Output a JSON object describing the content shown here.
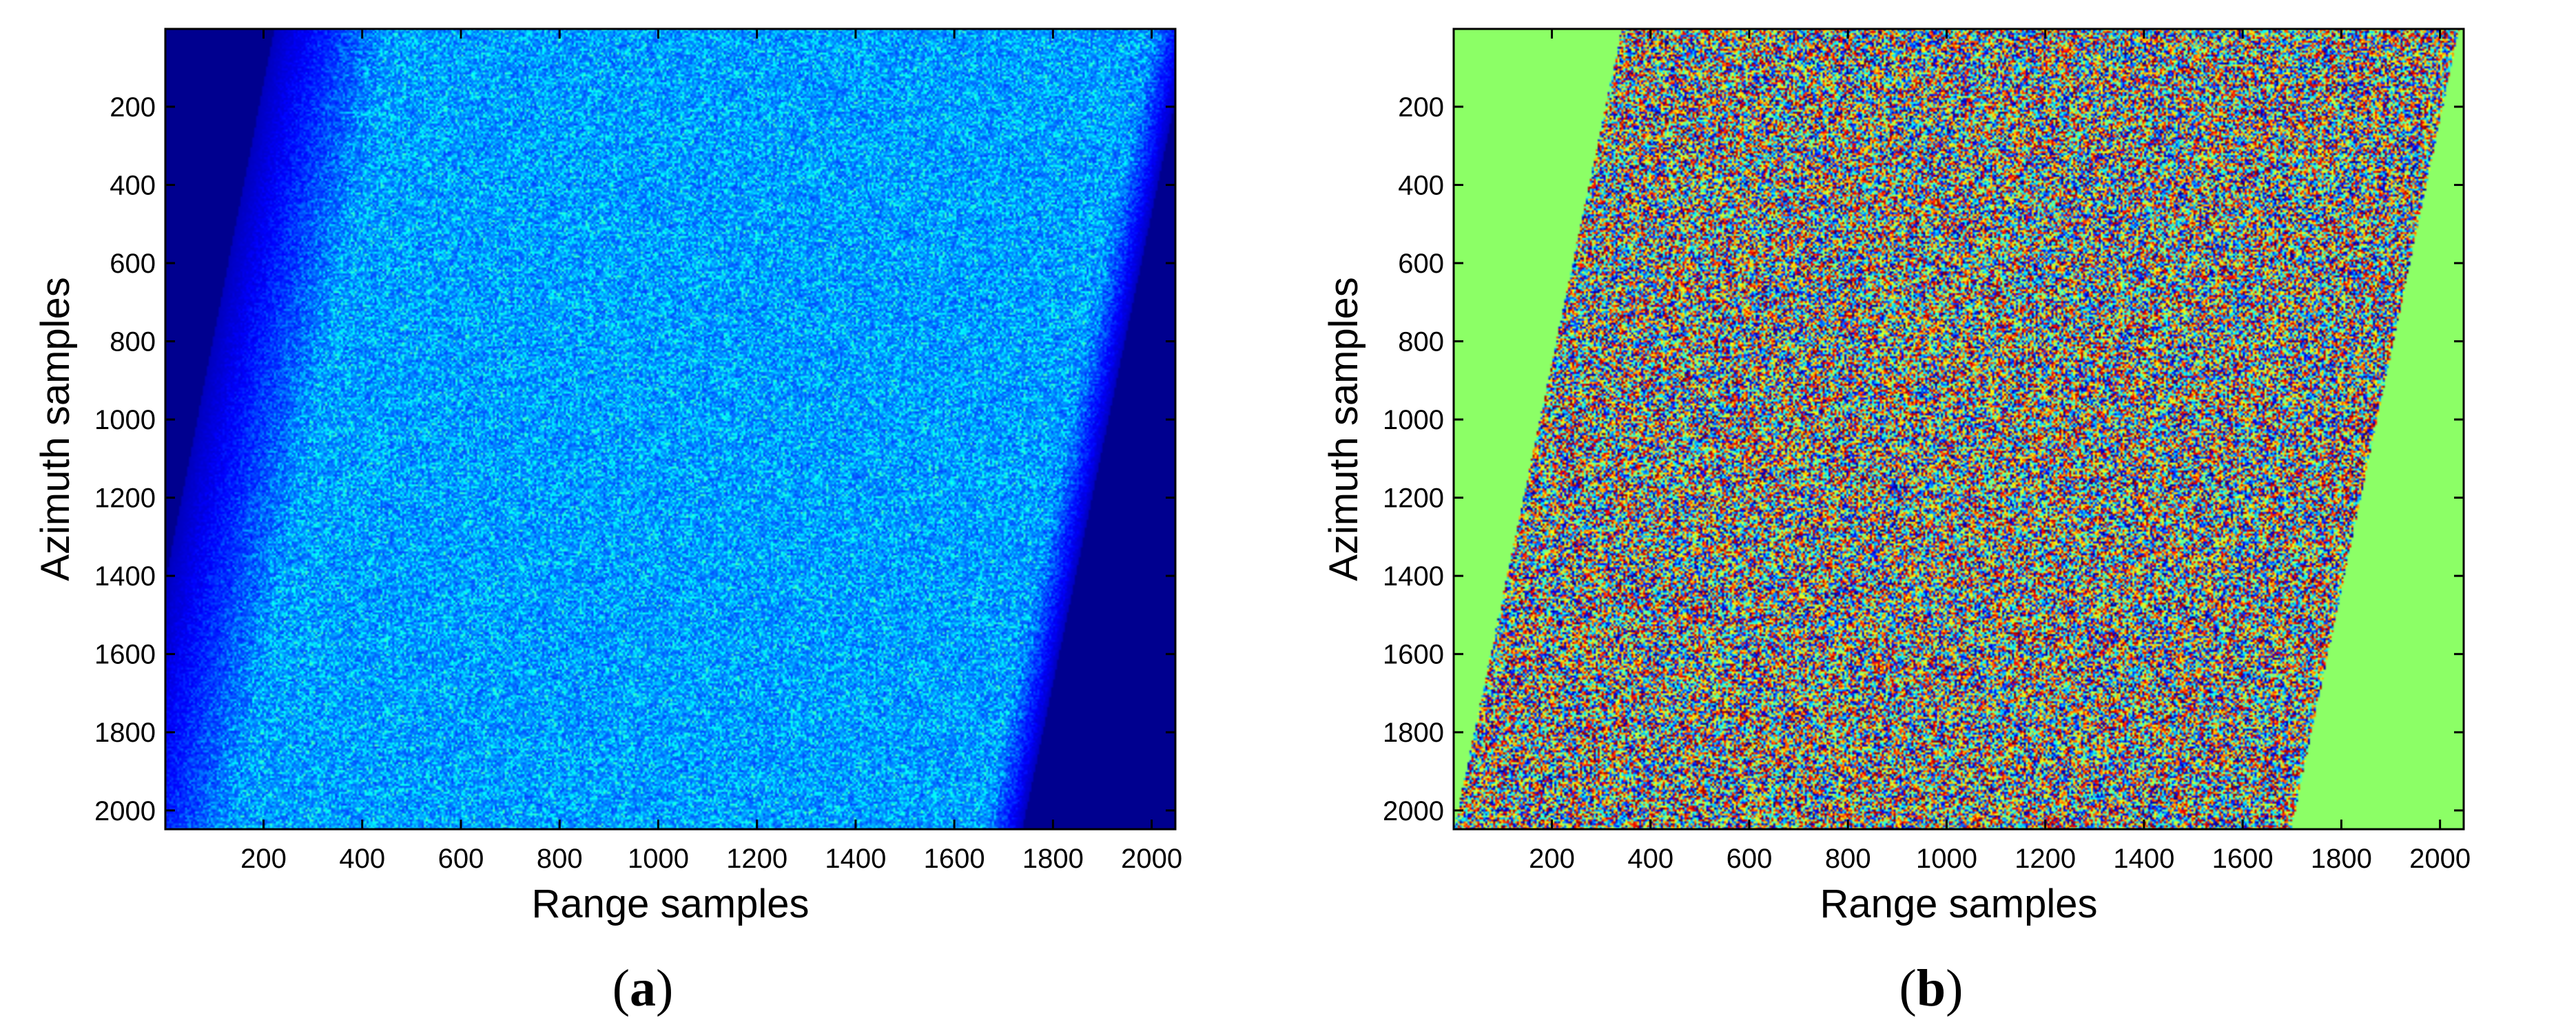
{
  "chart_data": [
    {
      "type": "heatmap",
      "panel_label": "a",
      "caption_open": "(",
      "caption_close": ")",
      "xlabel": "Range samples",
      "ylabel": "Azimuth samples",
      "xlim": [
        1,
        2048
      ],
      "ylim": [
        1,
        2048
      ],
      "y_direction": "top-to-bottom",
      "xticks": [
        200,
        400,
        600,
        800,
        1000,
        1200,
        1400,
        1600,
        1800,
        2000
      ],
      "yticks": [
        200,
        400,
        600,
        800,
        1000,
        1200,
        1400,
        1600,
        1800,
        2000
      ],
      "colormap": "jet",
      "background_color": "#00008f",
      "signal_band": {
        "description": "speckle amplitude, range-migrated band",
        "left_edge_at_top": 340,
        "left_edge_at_bottom": 20,
        "right_edge_at_top": 2040,
        "right_edge_at_bottom": 1700
      },
      "grid": false,
      "legend": false
    },
    {
      "type": "heatmap",
      "panel_label": "b",
      "caption_open": "(",
      "caption_close": ")",
      "xlabel": "Range samples",
      "ylabel": "Azimuth samples",
      "xlim": [
        1,
        2048
      ],
      "ylim": [
        1,
        2048
      ],
      "y_direction": "top-to-bottom",
      "xticks": [
        200,
        400,
        600,
        800,
        1000,
        1200,
        1400,
        1600,
        1800,
        2000
      ],
      "yticks": [
        200,
        400,
        600,
        800,
        1000,
        1200,
        1400,
        1600,
        1800,
        2000
      ],
      "colormap": "jet",
      "background_color": "#8cff66",
      "signal_band": {
        "description": "phase, range-migrated band",
        "left_edge_at_top": 340,
        "left_edge_at_bottom": 0,
        "right_edge_at_top": 2040,
        "right_edge_at_bottom": 1700
      },
      "grid": false,
      "legend": false
    }
  ]
}
